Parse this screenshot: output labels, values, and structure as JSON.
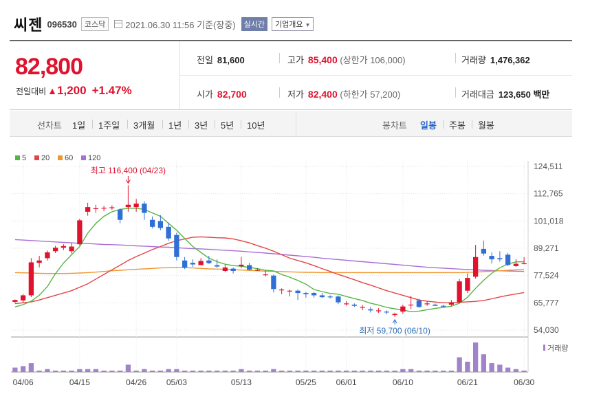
{
  "header": {
    "name": "씨젠",
    "code": "096530",
    "market": "코스닥",
    "datetime": "2021.06.30 11:56",
    "basis": "기준(장중)",
    "realtime_button": "실시간",
    "overview_button": "기업개요"
  },
  "price": {
    "current": "82,800",
    "change_label": "전일대비",
    "change_amount": "1,200",
    "change_pct": "+1.47%",
    "up_color": "#e0122e",
    "down_color": "#2f6fd6"
  },
  "quote": {
    "prev_close_label": "전일",
    "prev_close": "81,600",
    "high_label": "고가",
    "high": "85,400",
    "upper_limit": "(상한가 106,000)",
    "volume_label": "거래량",
    "volume": "1,476,362",
    "open_label": "시가",
    "open": "82,700",
    "low_label": "저가",
    "low": "82,400",
    "lower_limit": "(하한가 57,200)",
    "amount_label": "거래대금",
    "amount": "123,650",
    "amount_unit": "백만"
  },
  "periods": {
    "line_label": "선차트",
    "line_options": [
      "1일",
      "1주일",
      "3개월",
      "1년",
      "3년",
      "5년",
      "10년"
    ],
    "candle_label": "봉차트",
    "candle_options": [
      "일봉",
      "주봉",
      "월봉"
    ],
    "candle_active": "일봉"
  },
  "chart_data": {
    "type": "candlestick",
    "ylim": [
      54030,
      124511
    ],
    "y_ticks": [
      "124,511",
      "112,765",
      "101,018",
      "89,271",
      "77,524",
      "65,777",
      "54,030"
    ],
    "x_tick_labels": [
      "04/06",
      "04/15",
      "04/26",
      "05/03",
      "05/13",
      "05/25",
      "06/01",
      "06/10",
      "06/21",
      "06/30"
    ],
    "x_tick_index": [
      1,
      8,
      15,
      20,
      28,
      36,
      41,
      48,
      56,
      63
    ],
    "legend": [
      {
        "name": "5",
        "color": "#55b544"
      },
      {
        "name": "20",
        "color": "#e34545"
      },
      {
        "name": "60",
        "color": "#f0962e"
      },
      {
        "name": "120",
        "color": "#a86fd6"
      }
    ],
    "annotations": {
      "max_label": "최고 116,400 (04/23)",
      "max_index": 14,
      "max_value": 116400,
      "min_label": "최저 59,700 (06/10)",
      "min_index": 47,
      "min_value": 59700
    },
    "volume_label": "거래량",
    "ohlc": [
      [
        66200,
        67200,
        65600,
        67000
      ],
      [
        66800,
        69500,
        65800,
        69000
      ],
      [
        69000,
        85000,
        68200,
        83200
      ],
      [
        83000,
        86000,
        81000,
        84000
      ],
      [
        85000,
        88300,
        84000,
        87500
      ],
      [
        88000,
        90300,
        87200,
        89500
      ],
      [
        89500,
        91000,
        88500,
        90200
      ],
      [
        88000,
        91500,
        87000,
        90000
      ],
      [
        91000,
        102000,
        90500,
        101300
      ],
      [
        105000,
        108900,
        103300,
        107000
      ],
      [
        106500,
        108000,
        104500,
        106500
      ],
      [
        106500,
        107500,
        105200,
        106700
      ],
      [
        106800,
        107800,
        105800,
        106900
      ],
      [
        106000,
        106500,
        100000,
        101500
      ],
      [
        107000,
        116400,
        105000,
        108000
      ],
      [
        107000,
        110500,
        105000,
        108500
      ],
      [
        108500,
        109500,
        101500,
        104500
      ],
      [
        101500,
        103000,
        97800,
        98500
      ],
      [
        101000,
        103500,
        97000,
        98000
      ],
      [
        98500,
        100300,
        92500,
        93500
      ],
      [
        95000,
        96000,
        84000,
        85500
      ],
      [
        84000,
        85500,
        80300,
        81000
      ],
      [
        83000,
        84500,
        81300,
        82300
      ],
      [
        82000,
        85000,
        82000,
        83800
      ],
      [
        84000,
        86000,
        82500,
        82900
      ],
      [
        82000,
        84500,
        80800,
        81400
      ],
      [
        79500,
        82200,
        79000,
        81000
      ],
      [
        80500,
        81000,
        78400,
        79500
      ],
      [
        81500,
        85600,
        80700,
        82200
      ],
      [
        82000,
        83000,
        79800,
        80000
      ],
      [
        80000,
        80600,
        79500,
        80000
      ],
      [
        78000,
        79500,
        77200,
        78000
      ],
      [
        77500,
        78000,
        70200,
        71700
      ],
      [
        71500,
        72000,
        69500,
        71500
      ],
      [
        71000,
        71500,
        68500,
        71000
      ],
      [
        71000,
        71600,
        67000,
        70000
      ],
      [
        70000,
        70500,
        68000,
        69500
      ],
      [
        70000,
        70500,
        68000,
        69000
      ],
      [
        69000,
        70000,
        67800,
        68200
      ],
      [
        68500,
        69000,
        67600,
        68400
      ],
      [
        68500,
        69000,
        65200,
        66000
      ],
      [
        65500,
        66500,
        64500,
        65500
      ],
      [
        65000,
        65500,
        64000,
        64500
      ],
      [
        64000,
        64800,
        62600,
        64000
      ],
      [
        63000,
        64000,
        61600,
        62500
      ],
      [
        62500,
        63500,
        61400,
        62500
      ],
      [
        62000,
        62500,
        60800,
        61600
      ],
      [
        60500,
        61500,
        59700,
        61000
      ],
      [
        62000,
        65000,
        61000,
        64200
      ],
      [
        65000,
        68800,
        63000,
        65000
      ],
      [
        66800,
        67500,
        63700,
        64000
      ],
      [
        65500,
        66500,
        64500,
        65500
      ],
      [
        65000,
        65500,
        64500,
        64500
      ],
      [
        64500,
        65000,
        63800,
        64300
      ],
      [
        65000,
        67000,
        64500,
        66000
      ],
      [
        66000,
        76000,
        65500,
        75000
      ],
      [
        71000,
        78500,
        70000,
        76500
      ],
      [
        77000,
        90700,
        76200,
        85500
      ],
      [
        89000,
        92600,
        86100,
        87000
      ],
      [
        86000,
        87500,
        82700,
        84500
      ],
      [
        85000,
        88000,
        83500,
        84500
      ],
      [
        86500,
        87300,
        81600,
        82100
      ],
      [
        81600,
        84600,
        81200,
        82600
      ],
      [
        82700,
        85400,
        82400,
        82800
      ]
    ],
    "ma5": [
      64000,
      65000,
      66500,
      69000,
      72800,
      78300,
      82900,
      86500,
      90000,
      95800,
      100000,
      103000,
      105000,
      106000,
      106500,
      106500,
      106000,
      104500,
      103000,
      100000,
      97000,
      93500,
      90000,
      87500,
      85000,
      83500,
      82400,
      81800,
      81500,
      81000,
      80500,
      79800,
      79500,
      78000,
      76800,
      75400,
      73800,
      71500,
      70600,
      69800,
      69500,
      68500,
      67600,
      66800,
      65600,
      64800,
      63800,
      63200,
      62600,
      62000,
      62200,
      62800,
      63400,
      63800,
      64300,
      65600,
      68200,
      72000,
      75500,
      78500,
      80900,
      82500,
      83400,
      83500
    ],
    "ma20": [
      65400,
      65800,
      66200,
      67000,
      68000,
      69000,
      70000,
      71000,
      72500,
      74000,
      76000,
      78000,
      80000,
      82000,
      84000,
      85700,
      87200,
      88700,
      90000,
      91400,
      92500,
      93300,
      94000,
      94200,
      94000,
      93800,
      93700,
      93300,
      92500,
      91600,
      90400,
      89300,
      88000,
      86500,
      85000,
      84000,
      83000,
      81800,
      80500,
      79300,
      78000,
      76900,
      75700,
      74500,
      73400,
      72200,
      71000,
      70000,
      69000,
      68000,
      67000,
      66500,
      66100,
      65800,
      65800,
      66000,
      66200,
      66400,
      66800,
      67500,
      68300,
      69000,
      69600,
      70200
    ],
    "ma60": [
      78800,
      78700,
      78600,
      78500,
      78400,
      78400,
      78400,
      78500,
      78600,
      78800,
      79000,
      79300,
      79600,
      79800,
      80000,
      80200,
      80400,
      80600,
      80800,
      80900,
      81000,
      80900,
      80800,
      80600,
      80400,
      80300,
      80200,
      80000,
      79900,
      79700,
      79600,
      79400,
      79300,
      79200,
      79100,
      79000,
      78900,
      78900,
      78800,
      78800,
      78800,
      78800,
      78800,
      78800,
      78800,
      78800,
      78800,
      78800,
      78800,
      78800,
      78800,
      78800,
      78800,
      78800,
      78800,
      78800,
      78900,
      79000,
      79200,
      79400,
      79600,
      79800,
      80000,
      80100
    ],
    "ma120": [
      93000,
      92800,
      92600,
      92400,
      92200,
      92000,
      91800,
      91600,
      91400,
      91300,
      91100,
      90900,
      90800,
      90700,
      90500,
      90300,
      90200,
      90000,
      89800,
      89700,
      89500,
      89300,
      89100,
      89000,
      88800,
      88600,
      88400,
      88200,
      88000,
      87700,
      87500,
      87200,
      86900,
      86600,
      86300,
      86000,
      85700,
      85400,
      85000,
      84700,
      84400,
      84100,
      83800,
      83500,
      83200,
      82900,
      82600,
      82300,
      82000,
      81700,
      81400,
      81100,
      80900,
      80700,
      80500,
      80300,
      80100,
      80000,
      79800,
      79700,
      79600,
      79500,
      79400,
      79300
    ],
    "volume": [
      3,
      4,
      6,
      1,
      2,
      1,
      1,
      1,
      2,
      2,
      2,
      1,
      1,
      1,
      5,
      1,
      2,
      1,
      1,
      2,
      2,
      1,
      1,
      1,
      1,
      1,
      1,
      1,
      2,
      1,
      1,
      1,
      2,
      1,
      1,
      1,
      1,
      1,
      1,
      1,
      1,
      1,
      1,
      1,
      1,
      1,
      1,
      1,
      2,
      2,
      1,
      1,
      1,
      1,
      1,
      10,
      7,
      20,
      12,
      6,
      5,
      3,
      2,
      1
    ]
  }
}
